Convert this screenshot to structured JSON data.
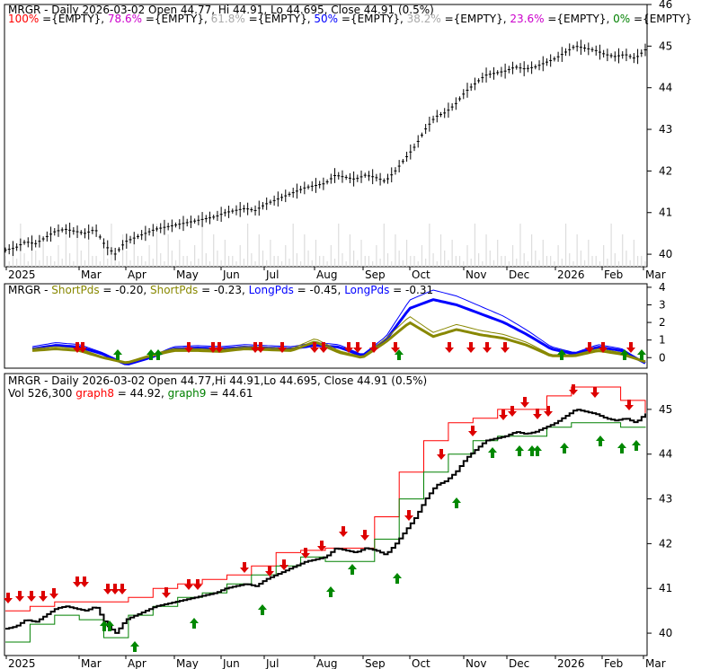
{
  "chart_data": [
    {
      "type": "line",
      "panel": "price-fibonacci",
      "title": "MRGR - Daily 2026-03-02 Open 44.77, Hi 44.91, Lo 44.695, Close 44.91 (0.5%)",
      "fib_legend": [
        {
          "label": "100%",
          "value": "={EMPTY}",
          "color": "#ff0000"
        },
        {
          "label": "78.6%",
          "value": "={EMPTY}",
          "color": "#cc00cc"
        },
        {
          "label": "61.8%",
          "value": "={EMPTY}",
          "color": "#aaaaaa"
        },
        {
          "label": "50%",
          "value": "={EMPTY}",
          "color": "#0000ff"
        },
        {
          "label": "38.2%",
          "value": "={EMPTY}",
          "color": "#aaaaaa"
        },
        {
          "label": "23.6%",
          "value": "={EMPTY}",
          "color": "#cc00cc"
        },
        {
          "label": "0%",
          "value": "={EMPTY}",
          "color": "#008000"
        }
      ],
      "ylim": [
        39.7,
        46.0
      ],
      "y_ticks": [
        40,
        41,
        42,
        43,
        44,
        45,
        46
      ],
      "x_labels": [
        "2025",
        "Mar",
        "Apr",
        "May",
        "Jun",
        "Jul",
        "Aug",
        "Sep",
        "Oct",
        "Nov",
        "Dec",
        "2026",
        "Feb",
        "Mar"
      ],
      "series": [
        {
          "values": [
            40.1,
            40.15,
            40.3,
            40.25,
            40.4,
            40.55,
            40.6,
            40.55,
            40.5,
            40.6,
            40.2,
            40.0,
            40.3,
            40.4,
            40.5,
            40.6,
            40.65,
            40.7,
            40.75,
            40.8,
            40.85,
            40.9,
            41.0,
            41.05,
            41.1,
            41.05,
            41.2,
            41.3,
            41.4,
            41.5,
            41.6,
            41.65,
            41.7,
            41.9,
            41.85,
            41.8,
            41.9,
            41.85,
            41.75,
            42.0,
            42.3,
            42.6,
            43.0,
            43.3,
            43.4,
            43.6,
            43.9,
            44.1,
            44.3,
            44.35,
            44.4,
            44.5,
            44.45,
            44.5,
            44.6,
            44.7,
            44.85,
            45.0,
            44.95,
            44.9,
            44.8,
            44.75,
            44.8,
            44.7,
            44.91
          ]
        }
      ]
    },
    {
      "type": "line",
      "panel": "short-long-pds",
      "title_parts": [
        {
          "text": "MRGR - ",
          "color": "#000000"
        },
        {
          "text": "ShortPds",
          "color": "#888800"
        },
        {
          "text": " = -0.20, ",
          "color": "#000000"
        },
        {
          "text": "ShortPds",
          "color": "#888800"
        },
        {
          "text": " = -0.23, ",
          "color": "#000000"
        },
        {
          "text": "LongPds",
          "color": "#0000ff"
        },
        {
          "text": " = -0.45, ",
          "color": "#000000"
        },
        {
          "text": "LongPds",
          "color": "#0000ff"
        },
        {
          "text": " = -0.31",
          "color": "#000000"
        }
      ],
      "ylim": [
        -0.6,
        4.2
      ],
      "y_ticks": [
        0,
        1,
        2,
        3,
        4
      ],
      "series": [
        {
          "color": "#0000ff",
          "values": [
            0.5,
            0.7,
            0.6,
            0.2,
            -0.4,
            0.0,
            0.5,
            0.55,
            0.5,
            0.6,
            0.55,
            0.5,
            0.7,
            0.6,
            0.1,
            1.0,
            2.8,
            3.3,
            3.0,
            2.5,
            2.0,
            1.3,
            0.5,
            0.2,
            0.6,
            0.4,
            -0.31
          ]
        },
        {
          "color": "#888800",
          "values": [
            0.4,
            0.5,
            0.4,
            0.0,
            -0.3,
            0.1,
            0.4,
            0.4,
            0.35,
            0.5,
            0.45,
            0.4,
            0.9,
            0.3,
            0.0,
            0.9,
            2.0,
            1.2,
            1.6,
            1.3,
            1.1,
            0.7,
            0.1,
            0.1,
            0.4,
            0.2,
            -0.23
          ]
        }
      ]
    },
    {
      "type": "line",
      "panel": "price-stops",
      "title": "MRGR - Daily 2026-03-02 Open 44.77,Hi 44.91,Lo 44.695, Close 44.91 (0.5%)",
      "subtitle_parts": [
        {
          "text": "Vol 526,300 ",
          "color": "#000000"
        },
        {
          "text": "graph8",
          "color": "#ff0000"
        },
        {
          "text": " = 44.92, ",
          "color": "#000000"
        },
        {
          "text": "graph9",
          "color": "#008000"
        },
        {
          "text": " = 44.61",
          "color": "#000000"
        }
      ],
      "ylim": [
        39.5,
        45.8
      ],
      "y_ticks": [
        40,
        41,
        42,
        43,
        44,
        45
      ],
      "x_labels": [
        "2025",
        "Mar",
        "Apr",
        "May",
        "Jun",
        "Jul",
        "Aug",
        "Sep",
        "Oct",
        "Nov",
        "Dec",
        "2026",
        "Feb",
        "Mar"
      ],
      "series": [
        {
          "name": "graph8",
          "color": "#ff0000",
          "values": [
            40.5,
            40.6,
            40.7,
            40.7,
            40.7,
            40.8,
            41.0,
            41.1,
            41.2,
            41.3,
            41.5,
            41.8,
            41.85,
            41.9,
            41.9,
            42.6,
            43.6,
            44.3,
            44.7,
            44.8,
            45.0,
            45.0,
            45.3,
            45.5,
            45.5,
            45.2,
            44.92
          ]
        },
        {
          "name": "graph9",
          "color": "#008000",
          "values": [
            39.8,
            40.2,
            40.4,
            40.3,
            39.9,
            40.4,
            40.6,
            40.8,
            40.9,
            41.1,
            41.3,
            41.5,
            41.7,
            41.6,
            41.6,
            42.1,
            43.0,
            43.6,
            44.0,
            44.3,
            44.4,
            44.4,
            44.6,
            44.7,
            44.7,
            44.6,
            44.61
          ]
        }
      ]
    }
  ]
}
